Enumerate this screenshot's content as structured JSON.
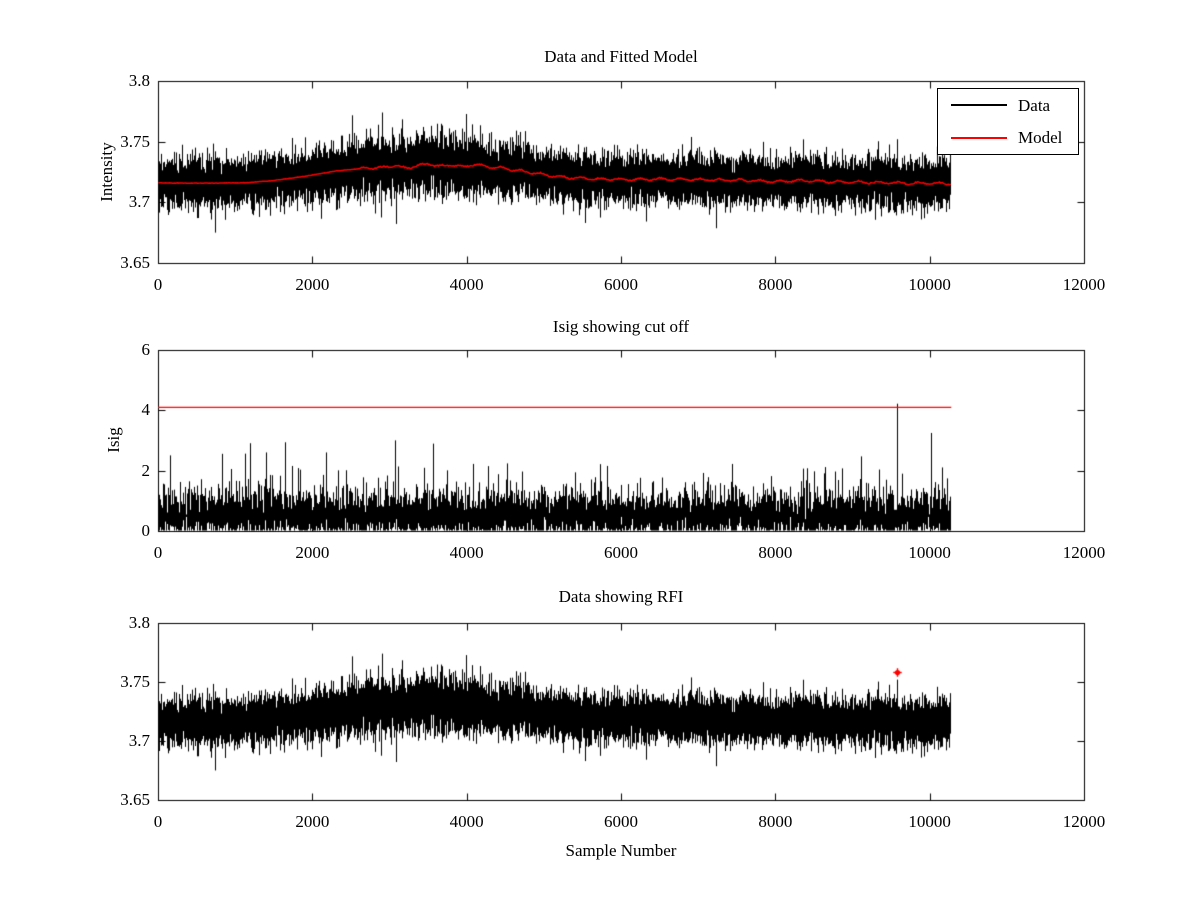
{
  "figure": {
    "background": "#ffffff",
    "frame_color": "#000000"
  },
  "legend": {
    "position": "top-right-subplot-1",
    "entries": [
      {
        "label": "Data",
        "color": "#000000"
      },
      {
        "label": "Model",
        "color": "#ff0000"
      }
    ]
  },
  "chart_data": [
    {
      "type": "line",
      "title": "Data and Fitted Model",
      "ylabel": "Intensity",
      "xlabel": "",
      "xlim": [
        0,
        12000
      ],
      "ylim": [
        3.65,
        3.8
      ],
      "xticks": [
        0,
        2000,
        4000,
        6000,
        8000,
        10000,
        12000
      ],
      "xtick_labels": [
        "0",
        "2000",
        "4000",
        "6000",
        "8000",
        "10000",
        "12000"
      ],
      "yticks": [
        3.65,
        3.7,
        3.75,
        3.8
      ],
      "ytick_labels": [
        "3.65",
        "3.7",
        "3.75",
        "3.8"
      ],
      "grid": false,
      "data_x_start": 0,
      "data_x_end": 10280,
      "series": [
        {
          "name": "Data",
          "color": "#000000",
          "kind": "noisy-band",
          "mean_follows": "Model",
          "noise_base": 0.004,
          "noise_sigma": 0.0085,
          "amp_boost_center": 3300,
          "amp_boost": 0.3,
          "typical_range": [
            3.69,
            3.76
          ]
        },
        {
          "name": "Model",
          "color": "#ff0000",
          "kind": "smooth-line",
          "keypoints_x": [
            0,
            700,
            1150,
            1500,
            1900,
            2300,
            2650,
            2900,
            3050,
            3200,
            3350,
            3500,
            3650,
            3800,
            3950,
            4100,
            4250,
            4450,
            4700,
            5000,
            5300,
            5700,
            6100,
            6500,
            7000,
            7500,
            8000,
            8400,
            8700,
            9000,
            9400,
            9800,
            10280
          ],
          "keypoints_y": [
            3.716,
            3.7158,
            3.7162,
            3.718,
            3.7215,
            3.7258,
            3.728,
            3.7285,
            3.7305,
            3.7282,
            3.73,
            3.7318,
            3.7295,
            3.7308,
            3.7292,
            3.7315,
            3.7295,
            3.7282,
            3.7258,
            3.7228,
            3.7205,
            3.7192,
            3.7188,
            3.7192,
            3.7186,
            3.7182,
            3.7172,
            3.718,
            3.717,
            3.7168,
            3.7162,
            3.7158,
            3.7155
          ]
        }
      ]
    },
    {
      "type": "line",
      "title": "Isig showing cut off",
      "ylabel": "Isig",
      "xlabel": "",
      "xlim": [
        0,
        12000
      ],
      "ylim": [
        0,
        6
      ],
      "xticks": [
        0,
        2000,
        4000,
        6000,
        8000,
        10000,
        12000
      ],
      "xtick_labels": [
        "0",
        "2000",
        "4000",
        "6000",
        "8000",
        "10000",
        "12000"
      ],
      "yticks": [
        0,
        2,
        4,
        6
      ],
      "ytick_labels": [
        "0",
        "2",
        "4",
        "6"
      ],
      "grid": false,
      "data_x_start": 0,
      "data_x_end": 10280,
      "series": [
        {
          "name": "Isig",
          "color": "#000000",
          "kind": "spiky-positive",
          "dense_mass_max": 1.6,
          "spike_max": 3.3
        },
        {
          "name": "cutoff",
          "color": "#ff0000",
          "kind": "hline",
          "y": 4.1,
          "x_extent": [
            0,
            10280
          ]
        }
      ],
      "crossing_spike": {
        "x": 9578,
        "y": 4.22
      }
    },
    {
      "type": "line",
      "title": "Data showing RFI",
      "ylabel": "",
      "xlabel": "Sample Number",
      "xlim": [
        0,
        12000
      ],
      "ylim": [
        3.65,
        3.8
      ],
      "xticks": [
        0,
        2000,
        4000,
        6000,
        8000,
        10000,
        12000
      ],
      "xtick_labels": [
        "0",
        "2000",
        "4000",
        "6000",
        "8000",
        "10000",
        "12000"
      ],
      "yticks": [
        3.65,
        3.7,
        3.75,
        3.8
      ],
      "ytick_labels": [
        "3.65",
        "3.7",
        "3.75",
        "3.8"
      ],
      "grid": false,
      "data_x_start": 0,
      "data_x_end": 10280,
      "series": [
        {
          "name": "Data",
          "color": "#000000",
          "kind": "noisy-band",
          "same_data_as": "subplot-1 Data",
          "typical_range": [
            3.69,
            3.755
          ]
        }
      ],
      "rfi_marker": {
        "x": 9578,
        "y": 3.758,
        "color": "#ff0000",
        "marker": "dot"
      }
    }
  ]
}
